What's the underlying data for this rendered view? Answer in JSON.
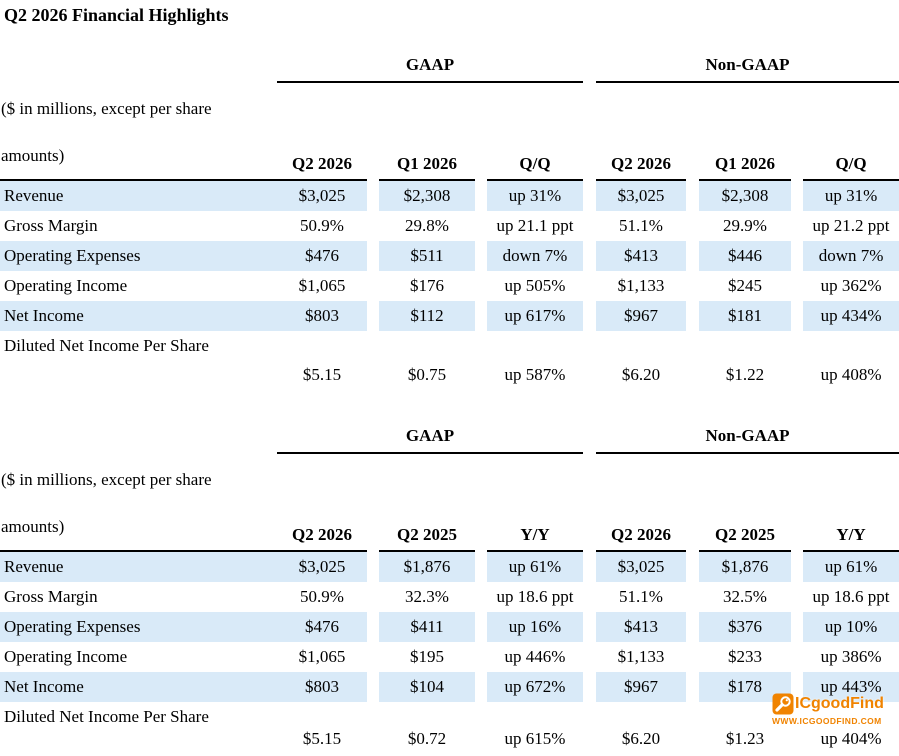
{
  "page_title": "Q2 2026 Financial Highlights",
  "units_note": {
    "line1": "($ in millions, except per share",
    "line2": "amounts)"
  },
  "colors": {
    "row_highlight": "#D9EAF8",
    "text": "#000000",
    "rule": "#000000",
    "watermark_orange": "#F08300"
  },
  "tables": [
    {
      "id": "quarter-over-quarter",
      "groups": [
        "GAAP",
        "Non-GAAP"
      ],
      "column_headers": [
        "Q2 2026",
        "Q1 2026",
        "Q/Q",
        "Q2 2026",
        "Q1 2026",
        "Q/Q"
      ],
      "rows": [
        {
          "label": "Revenue",
          "values": [
            "$3,025",
            "$2,308",
            "up 31%",
            "$3,025",
            "$2,308",
            "up 31%"
          ]
        },
        {
          "label": "Gross Margin",
          "values": [
            "50.9%",
            "29.8%",
            "up 21.1 ppt",
            "51.1%",
            "29.9%",
            "up 21.2 ppt"
          ]
        },
        {
          "label": "Operating Expenses",
          "values": [
            "$476",
            "$511",
            "down 7%",
            "$413",
            "$446",
            "down 7%"
          ]
        },
        {
          "label": "Operating Income",
          "values": [
            "$1,065",
            "$176",
            "up 505%",
            "$1,133",
            "$245",
            "up 362%"
          ]
        },
        {
          "label": "Net Income",
          "values": [
            "$803",
            "$112",
            "up 617%",
            "$967",
            "$181",
            "up 434%"
          ]
        },
        {
          "label": "Diluted Net Income Per Share",
          "values": [
            "$5.15",
            "$0.75",
            "up 587%",
            "$6.20",
            "$1.22",
            "up 408%"
          ]
        }
      ]
    },
    {
      "id": "year-over-year",
      "groups": [
        "GAAP",
        "Non-GAAP"
      ],
      "column_headers": [
        "Q2 2026",
        "Q2 2025",
        "Y/Y",
        "Q2 2026",
        "Q2 2025",
        "Y/Y"
      ],
      "rows": [
        {
          "label": "Revenue",
          "values": [
            "$3,025",
            "$1,876",
            "up 61%",
            "$3,025",
            "$1,876",
            "up 61%"
          ]
        },
        {
          "label": "Gross Margin",
          "values": [
            "50.9%",
            "32.3%",
            "up 18.6 ppt",
            "51.1%",
            "32.5%",
            "up 18.6 ppt"
          ]
        },
        {
          "label": "Operating Expenses",
          "values": [
            "$476",
            "$411",
            "up 16%",
            "$413",
            "$376",
            "up 10%"
          ]
        },
        {
          "label": "Operating Income",
          "values": [
            "$1,065",
            "$195",
            "up 446%",
            "$1,133",
            "$233",
            "up 386%"
          ]
        },
        {
          "label": "Net Income",
          "values": [
            "$803",
            "$104",
            "up 672%",
            "$967",
            "$178",
            "up 443%"
          ]
        },
        {
          "label": "Diluted Net Income Per Share",
          "values": [
            "$5.15",
            "$0.72",
            "up 615%",
            "$6.20",
            "$1.23",
            "up 404%"
          ]
        }
      ]
    }
  ],
  "watermark": {
    "brand": "ICgoodFind",
    "url": "WWW.ICGOODFIND.COM"
  }
}
